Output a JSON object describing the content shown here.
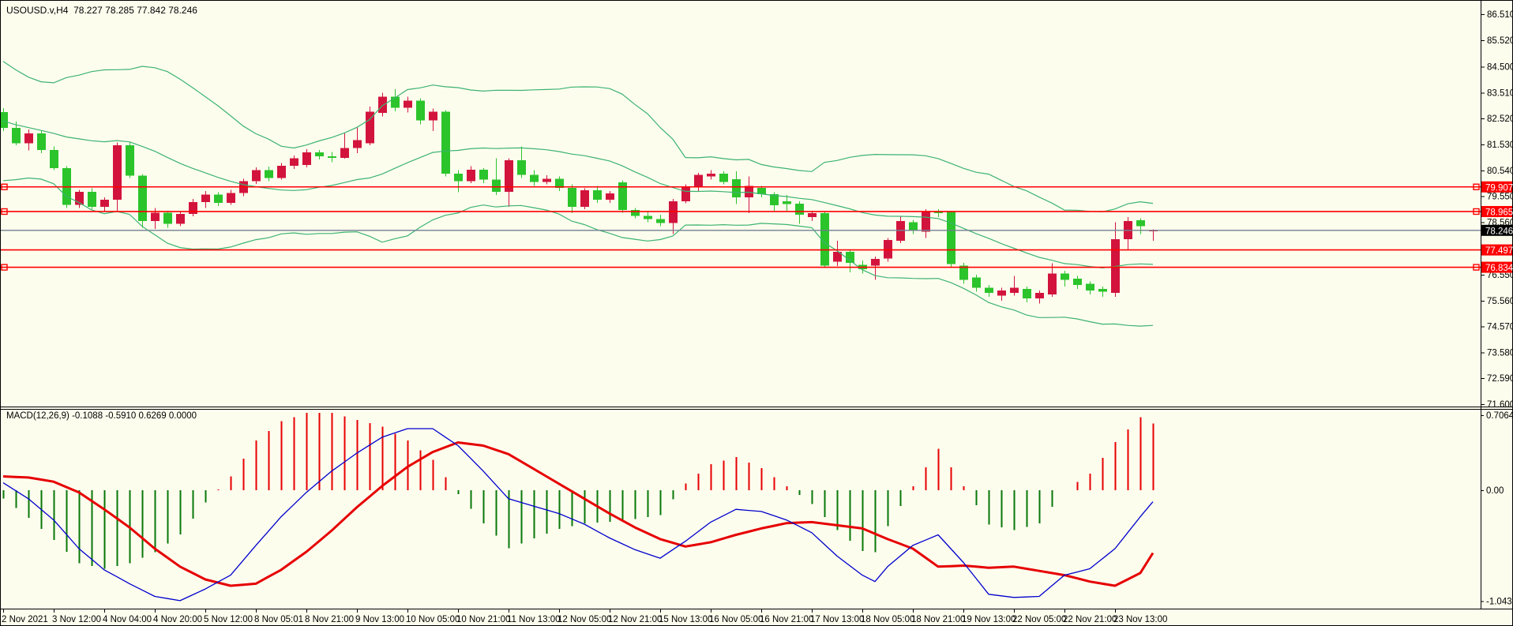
{
  "main_chart": {
    "title": "USOUSD.v,H4  78.227 78.285 77.842 78.246",
    "symbol": "USOUSD.v",
    "period": "H4",
    "ohlc": {
      "open": "78.227",
      "high": "78.285",
      "low": "77.842",
      "close": "78.246"
    }
  },
  "macd_panel": {
    "label": "MACD(12,26,9) -0.1088 -0.5910 0.6269 0.0000",
    "axis_labels": [
      {
        "text": "0.7064",
        "value": 0.7064
      },
      {
        "text": "0.00",
        "value": 0.0
      },
      {
        "text": "-1.0439",
        "value": -1.0439
      }
    ]
  },
  "price_axis": {
    "ticks": [
      "86.510",
      "85.520",
      "84.500",
      "83.510",
      "82.520",
      "81.530",
      "80.540",
      "79.550",
      "78.560",
      "76.550",
      "75.560",
      "74.570",
      "73.580",
      "72.590",
      "71.600"
    ],
    "badges": [
      {
        "text": "79.907",
        "value": 79.907,
        "bg": "#FF0000",
        "fg": "#FFFFFF"
      },
      {
        "text": "78.965",
        "value": 78.965,
        "bg": "#FF0000",
        "fg": "#FFFFFF"
      },
      {
        "text": "78.246",
        "value": 78.246,
        "bg": "#000000",
        "fg": "#FFFFFF"
      },
      {
        "text": "77.497",
        "value": 77.497,
        "bg": "#FF0000",
        "fg": "#FFFFFF"
      },
      {
        "text": "76.834",
        "value": 76.834,
        "bg": "#FF0000",
        "fg": "#FFFFFF"
      }
    ]
  },
  "hlines": {
    "color": "#FF0000",
    "levels": [
      {
        "value": 79.907,
        "squares": true
      },
      {
        "value": 78.965,
        "squares": true
      },
      {
        "value": 77.497,
        "squares": false
      },
      {
        "value": 76.834,
        "squares": true
      }
    ]
  },
  "current_price_line": {
    "value": 78.246,
    "color": "#708090"
  },
  "colors": {
    "background": "#FDFDEE",
    "bull": "#D2143C",
    "bear": "#2BC42B",
    "bollinger": "#3CB371",
    "macd_line": "#0000CD",
    "macd_signal": "#E60000",
    "hist_pos": "#E60000",
    "hist_neg": "#087808",
    "border": "#000000",
    "text": "#000000"
  },
  "chart_data": {
    "type": "candlestick",
    "title": "USOUSD.v,H4",
    "ylabel": "price",
    "y_axis_range": [
      71.0,
      87.0
    ],
    "x_labels": [
      "2 Nov 2021",
      "3 Nov 12:00",
      "4 Nov 04:00",
      "4 Nov 20:00",
      "5 Nov 12:00",
      "8 Nov 05:01",
      "8 Nov 21:00",
      "9 Nov 13:00",
      "10 Nov 05:00",
      "10 Nov 21:00",
      "11 Nov 13:00",
      "12 Nov 05:00",
      "12 Nov 21:00",
      "15 Nov 13:00",
      "16 Nov 05:00",
      "16 Nov 21:00",
      "17 Nov 13:00",
      "18 Nov 05:00",
      "18 Nov 21:00",
      "19 Nov 13:00",
      "22 Nov 05:00",
      "22 Nov 21:00",
      "23 Nov 13:00"
    ],
    "bars_per_label": 4,
    "ohlc": [
      [
        82.76,
        82.92,
        82.05,
        82.16
      ],
      [
        82.16,
        82.4,
        81.5,
        81.58
      ],
      [
        81.58,
        82.1,
        81.3,
        81.95
      ],
      [
        81.95,
        82.05,
        81.2,
        81.32
      ],
      [
        81.32,
        81.45,
        80.55,
        80.62
      ],
      [
        80.62,
        80.7,
        79.1,
        79.22
      ],
      [
        79.22,
        79.8,
        79.1,
        79.72
      ],
      [
        79.72,
        79.85,
        79.05,
        79.15
      ],
      [
        79.15,
        79.5,
        78.95,
        79.42
      ],
      [
        79.42,
        81.6,
        78.95,
        81.5
      ],
      [
        81.5,
        81.62,
        80.25,
        80.33
      ],
      [
        80.33,
        80.4,
        78.35,
        78.6
      ],
      [
        78.6,
        79.1,
        78.3,
        78.92
      ],
      [
        78.92,
        79.0,
        78.35,
        78.5
      ],
      [
        78.5,
        78.95,
        78.4,
        78.88
      ],
      [
        78.88,
        79.45,
        78.78,
        79.32
      ],
      [
        79.32,
        79.75,
        79.1,
        79.62
      ],
      [
        79.62,
        79.7,
        79.18,
        79.3
      ],
      [
        79.3,
        79.8,
        79.22,
        79.68
      ],
      [
        79.68,
        80.22,
        79.55,
        80.12
      ],
      [
        80.12,
        80.65,
        80.02,
        80.55
      ],
      [
        80.55,
        80.68,
        80.12,
        80.25
      ],
      [
        80.25,
        80.82,
        80.18,
        80.72
      ],
      [
        80.72,
        81.1,
        80.6,
        81.0
      ],
      [
        80.75,
        81.35,
        80.65,
        81.23
      ],
      [
        81.23,
        81.32,
        80.95,
        81.08
      ],
      [
        81.08,
        81.25,
        80.85,
        81.02
      ],
      [
        81.02,
        81.95,
        80.98,
        81.4
      ],
      [
        81.4,
        82.2,
        81.2,
        81.7
      ],
      [
        81.58,
        82.98,
        81.5,
        82.78
      ],
      [
        82.74,
        83.5,
        82.6,
        83.35
      ],
      [
        83.35,
        83.65,
        82.8,
        82.93
      ],
      [
        82.93,
        83.35,
        82.75,
        83.2
      ],
      [
        83.2,
        83.3,
        82.3,
        82.45
      ],
      [
        82.45,
        82.9,
        82.05,
        82.78
      ],
      [
        82.78,
        82.85,
        80.3,
        80.42
      ],
      [
        80.42,
        80.55,
        79.7,
        80.12
      ],
      [
        80.12,
        80.7,
        80.05,
        80.57
      ],
      [
        80.57,
        80.62,
        80.05,
        80.18
      ],
      [
        80.18,
        81.0,
        79.6,
        79.72
      ],
      [
        79.72,
        81.0,
        79.15,
        80.92
      ],
      [
        80.92,
        81.45,
        80.25,
        80.36
      ],
      [
        80.36,
        80.55,
        79.95,
        80.1
      ],
      [
        80.1,
        80.35,
        80.0,
        80.22
      ],
      [
        80.22,
        80.3,
        79.75,
        79.87
      ],
      [
        79.87,
        80.0,
        78.9,
        79.14
      ],
      [
        79.14,
        79.85,
        79.05,
        79.78
      ],
      [
        79.78,
        79.95,
        79.3,
        79.42
      ],
      [
        79.42,
        79.75,
        79.3,
        79.66
      ],
      [
        80.08,
        80.15,
        78.92,
        79.02
      ],
      [
        79.02,
        79.1,
        78.7,
        78.8
      ],
      [
        78.8,
        78.95,
        78.55,
        78.67
      ],
      [
        78.67,
        78.85,
        78.4,
        78.52
      ],
      [
        78.52,
        79.45,
        78.1,
        79.36
      ],
      [
        79.36,
        80.0,
        79.28,
        79.9
      ],
      [
        79.9,
        80.45,
        79.75,
        80.36
      ],
      [
        80.3,
        80.55,
        80.18,
        80.42
      ],
      [
        80.42,
        80.5,
        80.0,
        80.1
      ],
      [
        80.2,
        80.5,
        79.25,
        79.5
      ],
      [
        79.5,
        80.3,
        78.9,
        79.95
      ],
      [
        79.87,
        79.95,
        79.5,
        79.63
      ],
      [
        79.63,
        79.7,
        79.0,
        79.2
      ],
      [
        79.35,
        79.6,
        79.0,
        79.25
      ],
      [
        79.27,
        79.35,
        78.5,
        78.85
      ],
      [
        78.76,
        79.0,
        78.6,
        78.9
      ],
      [
        78.9,
        78.95,
        76.8,
        76.9
      ],
      [
        77.05,
        77.85,
        76.88,
        77.42
      ],
      [
        77.42,
        77.5,
        76.64,
        77.0
      ],
      [
        76.93,
        77.1,
        76.6,
        76.76
      ],
      [
        76.9,
        77.25,
        76.35,
        77.16
      ],
      [
        77.17,
        77.95,
        77.05,
        77.88
      ],
      [
        77.85,
        78.8,
        77.75,
        78.6
      ],
      [
        78.55,
        78.65,
        78.1,
        78.25
      ],
      [
        78.2,
        79.05,
        77.95,
        78.95
      ],
      [
        78.95,
        79.05,
        78.75,
        78.9
      ],
      [
        78.95,
        79.0,
        76.85,
        76.95
      ],
      [
        76.9,
        77.0,
        76.2,
        76.35
      ],
      [
        76.45,
        76.55,
        75.9,
        76.05
      ],
      [
        76.05,
        76.15,
        75.7,
        75.85
      ],
      [
        75.75,
        76.05,
        75.55,
        75.95
      ],
      [
        75.85,
        76.5,
        75.75,
        76.05
      ],
      [
        76.0,
        76.1,
        75.5,
        75.65
      ],
      [
        75.65,
        75.95,
        75.45,
        75.85
      ],
      [
        75.8,
        76.98,
        75.7,
        76.6
      ],
      [
        76.6,
        76.7,
        76.1,
        76.35
      ],
      [
        76.4,
        76.5,
        76.0,
        76.15
      ],
      [
        76.2,
        76.3,
        75.8,
        75.95
      ],
      [
        76.0,
        76.1,
        75.7,
        75.9
      ],
      [
        75.85,
        78.55,
        75.7,
        77.9
      ],
      [
        77.9,
        78.75,
        77.5,
        78.6
      ],
      [
        78.63,
        78.7,
        78.1,
        78.4
      ],
      [
        78.227,
        78.285,
        77.842,
        78.246
      ]
    ],
    "indicators": {
      "bollinger": {
        "period": 20,
        "deviation": 2,
        "seed_history_closes": [
          83.2,
          83.8,
          84.3,
          84.6,
          84.4,
          84.0,
          84.5,
          84.1,
          83.5,
          82.8,
          82.0,
          81.2,
          80.6,
          80.2,
          80.6,
          81.3,
          82.0,
          82.7,
          83.2,
          83.4,
          83.2,
          83.0,
          82.8,
          82.7,
          82.6
        ]
      },
      "macd": {
        "params": "12,26,9",
        "display_values": [
          -0.1088,
          -0.591,
          0.6269,
          0.0
        ],
        "range": [
          -1.0439,
          0.7064
        ],
        "histogram_factor": 1.3,
        "line_anchors": [
          [
            0,
            0.07
          ],
          [
            2,
            -0.08
          ],
          [
            4,
            -0.28
          ],
          [
            6,
            -0.55
          ],
          [
            8,
            -0.75
          ],
          [
            10,
            -0.88
          ],
          [
            12,
            -1.0
          ],
          [
            14,
            -1.04
          ],
          [
            16,
            -0.93
          ],
          [
            18,
            -0.8
          ],
          [
            20,
            -0.52
          ],
          [
            22,
            -0.25
          ],
          [
            24,
            -0.02
          ],
          [
            26,
            0.18
          ],
          [
            28,
            0.35
          ],
          [
            30,
            0.5
          ],
          [
            32,
            0.58
          ],
          [
            34,
            0.58
          ],
          [
            36,
            0.42
          ],
          [
            38,
            0.18
          ],
          [
            40,
            -0.08
          ],
          [
            42,
            -0.15
          ],
          [
            44,
            -0.22
          ],
          [
            46,
            -0.32
          ],
          [
            48,
            -0.45
          ],
          [
            50,
            -0.56
          ],
          [
            52,
            -0.64
          ],
          [
            54,
            -0.48
          ],
          [
            56,
            -0.3
          ],
          [
            58,
            -0.18
          ],
          [
            60,
            -0.2
          ],
          [
            62,
            -0.28
          ],
          [
            64,
            -0.4
          ],
          [
            66,
            -0.62
          ],
          [
            68,
            -0.8
          ],
          [
            69,
            -0.86
          ],
          [
            70,
            -0.72
          ],
          [
            72,
            -0.52
          ],
          [
            74,
            -0.42
          ],
          [
            76,
            -0.68
          ],
          [
            78,
            -0.98
          ],
          [
            80,
            -1.01
          ],
          [
            82,
            -1.0
          ],
          [
            84,
            -0.8
          ],
          [
            86,
            -0.74
          ],
          [
            88,
            -0.55
          ],
          [
            90,
            -0.25
          ],
          [
            91,
            -0.1088
          ]
        ],
        "signal_anchors": [
          [
            0,
            0.13
          ],
          [
            2,
            0.12
          ],
          [
            4,
            0.08
          ],
          [
            6,
            -0.02
          ],
          [
            8,
            -0.18
          ],
          [
            10,
            -0.35
          ],
          [
            12,
            -0.55
          ],
          [
            14,
            -0.72
          ],
          [
            16,
            -0.84
          ],
          [
            18,
            -0.9
          ],
          [
            20,
            -0.88
          ],
          [
            22,
            -0.75
          ],
          [
            24,
            -0.58
          ],
          [
            26,
            -0.38
          ],
          [
            28,
            -0.16
          ],
          [
            30,
            0.04
          ],
          [
            32,
            0.22
          ],
          [
            34,
            0.36
          ],
          [
            36,
            0.45
          ],
          [
            38,
            0.42
          ],
          [
            40,
            0.34
          ],
          [
            42,
            0.2
          ],
          [
            44,
            0.06
          ],
          [
            46,
            -0.08
          ],
          [
            48,
            -0.22
          ],
          [
            50,
            -0.35
          ],
          [
            52,
            -0.46
          ],
          [
            54,
            -0.53
          ],
          [
            56,
            -0.49
          ],
          [
            58,
            -0.42
          ],
          [
            60,
            -0.36
          ],
          [
            62,
            -0.31
          ],
          [
            64,
            -0.3
          ],
          [
            66,
            -0.33
          ],
          [
            68,
            -0.36
          ],
          [
            70,
            -0.46
          ],
          [
            72,
            -0.55
          ],
          [
            74,
            -0.72
          ],
          [
            76,
            -0.71
          ],
          [
            78,
            -0.73
          ],
          [
            80,
            -0.72
          ],
          [
            82,
            -0.76
          ],
          [
            84,
            -0.8
          ],
          [
            86,
            -0.86
          ],
          [
            88,
            -0.9
          ],
          [
            90,
            -0.78
          ],
          [
            91,
            -0.591
          ]
        ]
      }
    }
  }
}
